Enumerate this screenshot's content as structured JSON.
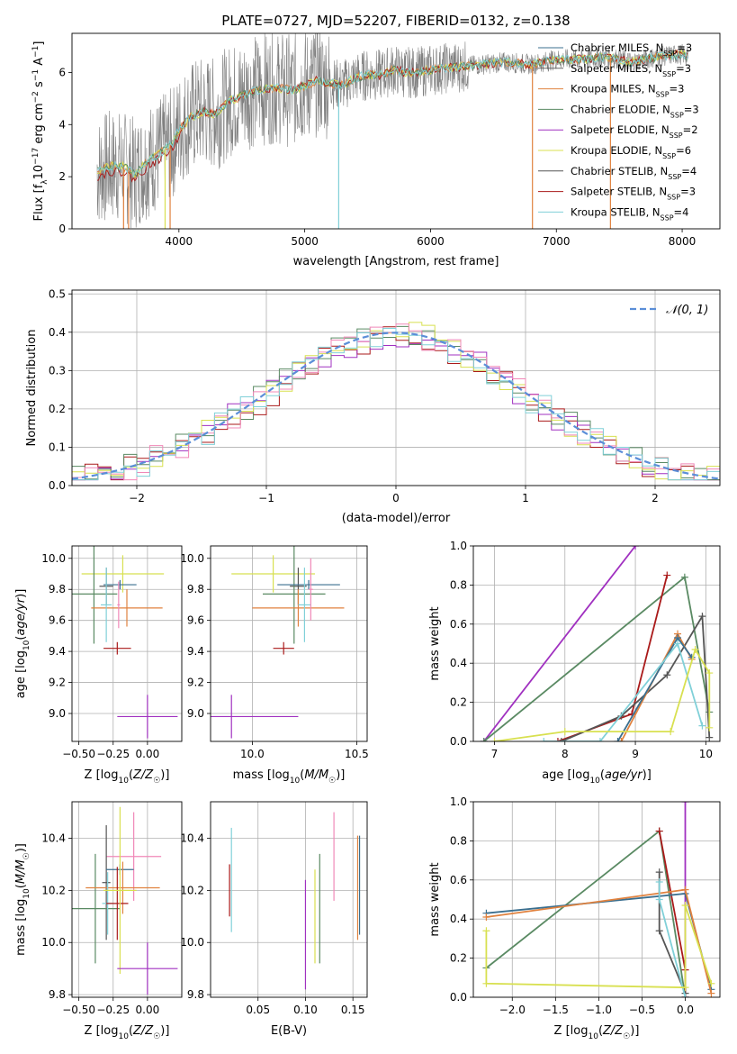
{
  "figure": {
    "title": "PLATE=0727, MJD=52207, FIBERID=0132, z=0.138"
  },
  "colors": {
    "Chabrier MILES": "#3b6f8f",
    "Salpeter MILES": "#666666",
    "Kroupa MILES": "#e0823f",
    "Chabrier ELODIE": "#5a8a63",
    "Salpeter ELODIE": "#a030c0",
    "Kroupa ELODIE": "#d8e050",
    "Chabrier STELIB": "#555555",
    "Salpeter STELIB": "#aa1a1a",
    "Kroupa STELIB": "#80d0d8",
    "spectrum": "#808080",
    "normal_curve": "#5b8ed8",
    "extra_pink": "#f088b8"
  },
  "chart_data": [
    {
      "id": "spectrum",
      "type": "line",
      "xlabel": "wavelength [Angstrom, rest frame]",
      "ylabel": "Flux [f_λ10^-17 erg cm^-2 s^-1 A^-1]",
      "ylabel_parts": {
        "main": "Flux [f",
        "sub1": "λ",
        "mid": "10",
        "sup1": "−17",
        "tail": " erg cm",
        "sup2": "−2",
        "tail2": " s",
        "sup3": "−1",
        "tail3": " A",
        "sup4": "−1",
        "end": "]"
      },
      "xlim": [
        3150,
        8300
      ],
      "ylim": [
        0,
        7.5
      ],
      "xticks": [
        4000,
        5000,
        6000,
        7000,
        8000
      ],
      "yticks": [
        0,
        2,
        4,
        6
      ],
      "grid": false,
      "legend_position": "right",
      "legend": [
        {
          "name": "Chabrier MILES",
          "label": "Chabrier MILES, N",
          "sub": "SSP",
          "tail": "=3"
        },
        {
          "name": "Salpeter MILES",
          "label": "Salpeter MILES, N",
          "sub": "SSP",
          "tail": "=3"
        },
        {
          "name": "Kroupa MILES",
          "label": "Kroupa MILES, N",
          "sub": "SSP",
          "tail": "=3"
        },
        {
          "name": "Chabrier ELODIE",
          "label": "Chabrier ELODIE, N",
          "sub": "SSP",
          "tail": "=3"
        },
        {
          "name": "Salpeter ELODIE",
          "label": "Salpeter ELODIE, N",
          "sub": "SSP",
          "tail": "=2"
        },
        {
          "name": "Kroupa ELODIE",
          "label": "Kroupa ELODIE, N",
          "sub": "SSP",
          "tail": "=6"
        },
        {
          "name": "Chabrier STELIB",
          "label": "Chabrier STELIB, N",
          "sub": "SSP",
          "tail": "=4"
        },
        {
          "name": "Salpeter STELIB",
          "label": "Salpeter STELIB, N",
          "sub": "SSP",
          "tail": "=3"
        },
        {
          "name": "Kroupa STELIB",
          "label": "Kroupa STELIB, N",
          "sub": "SSP",
          "tail": "=4"
        }
      ],
      "continuum": {
        "x": [
          3350,
          3450,
          3550,
          3650,
          3750,
          3850,
          3950,
          4000,
          4100,
          4200,
          4300,
          4400,
          4500,
          4600,
          4700,
          4800,
          4900,
          5000,
          5100,
          5200,
          5300,
          5400,
          5500,
          5600,
          5700,
          5800,
          5900,
          6000,
          6200,
          6400,
          6600,
          6800,
          7000,
          7200,
          7400,
          7600,
          7800,
          8000,
          8050
        ],
        "y": [
          2.2,
          2.4,
          2.4,
          2.1,
          2.6,
          2.9,
          3.3,
          3.8,
          4.3,
          4.5,
          4.4,
          4.9,
          5.1,
          5.3,
          5.4,
          5.4,
          5.3,
          5.5,
          5.7,
          5.6,
          5.5,
          5.8,
          5.9,
          5.9,
          6.1,
          6.0,
          6.0,
          6.1,
          6.2,
          6.3,
          6.4,
          6.3,
          6.5,
          6.5,
          6.6,
          6.4,
          6.6,
          6.7,
          6.6
        ]
      },
      "dips": [
        {
          "x": 3560,
          "series": "Kroupa MILES"
        },
        {
          "x": 3600,
          "series": "Kroupa MILES"
        },
        {
          "x": 3890,
          "series": "Kroupa ELODIE"
        },
        {
          "x": 3930,
          "series": "Kroupa MILES"
        },
        {
          "x": 5270,
          "series": "Kroupa STELIB"
        },
        {
          "x": 6810,
          "series": "Kroupa MILES"
        },
        {
          "x": 7430,
          "series": "Kroupa MILES"
        }
      ]
    },
    {
      "id": "residuals",
      "type": "histogram",
      "xlabel": "(data-model)/error",
      "ylabel": "Normed distribution",
      "xlim": [
        -2.5,
        2.5
      ],
      "ylim": [
        0,
        0.51
      ],
      "xticks": [
        -2,
        -1,
        0,
        1,
        2
      ],
      "yticks": [
        0.0,
        0.1,
        0.2,
        0.3,
        0.4,
        0.5
      ],
      "grid": true,
      "legend_position": "top-right",
      "legend_label": "𝒩(0, 1)",
      "bin_width": 0.1,
      "series": [
        {
          "name": "Salpeter STELIB",
          "amp": 0.38,
          "seed": 1
        },
        {
          "name": "Salpeter ELODIE",
          "amp": 0.39,
          "seed": 2
        },
        {
          "name": "Chabrier ELODIE",
          "amp": 0.4,
          "seed": 3
        },
        {
          "name": "Kroupa ELODIE",
          "amp": 0.4,
          "seed": 4
        },
        {
          "name": "extra_pink",
          "amp": 0.39,
          "seed": 5
        },
        {
          "name": "Kroupa STELIB",
          "amp": 0.39,
          "seed": 6
        }
      ]
    },
    {
      "id": "age-vs-Z",
      "type": "errorbar",
      "xlabel": "Z [log10(Z/Z☉)]",
      "ylabel": "age  [log10(age/yr)]",
      "xlim": [
        -0.55,
        0.25
      ],
      "ylim": [
        8.82,
        10.08
      ],
      "xticks": [
        -0.5,
        -0.25,
        0.0
      ],
      "yticks": [
        9.0,
        9.2,
        9.4,
        9.6,
        9.8,
        10.0
      ],
      "grid": true,
      "points": [
        {
          "series": "Kroupa ELODIE",
          "x": -0.18,
          "xerr": 0.3,
          "y": 9.9,
          "yerr": 0.12
        },
        {
          "series": "Chabrier STELIB",
          "x": -0.3,
          "xerr": 0.05,
          "y": 9.82,
          "yerr": 0.12
        },
        {
          "series": "Chabrier ELODIE",
          "x": -0.39,
          "xerr": 0.17,
          "y": 9.77,
          "yerr": 0.32
        },
        {
          "series": "Chabrier MILES",
          "x": -0.2,
          "xerr": 0.12,
          "y": 9.83,
          "yerr": 0.03
        },
        {
          "series": "Kroupa MILES",
          "x": -0.15,
          "xerr": 0.26,
          "y": 9.68,
          "yerr": 0.12
        },
        {
          "series": "Kroupa STELIB",
          "x": -0.3,
          "xerr": 0.04,
          "y": 9.7,
          "yerr": 0.24
        },
        {
          "series": "Salpeter STELIB",
          "x": -0.22,
          "xerr": 0.1,
          "y": 9.42,
          "yerr": 0.04
        },
        {
          "series": "Salpeter ELODIE",
          "x": 0.0,
          "xerr": 0.22,
          "y": 8.98,
          "yerr": 0.14
        },
        {
          "series": "extra_pink",
          "x": -0.21,
          "xerr": 0.01,
          "y": 9.7,
          "yerr": 0.15
        }
      ]
    },
    {
      "id": "age-vs-mass",
      "type": "errorbar",
      "xlabel": "mass [log10(M/M☉)]",
      "ylabel": "",
      "xlim": [
        9.8,
        10.55
      ],
      "ylim": [
        8.82,
        10.08
      ],
      "xticks": [
        10.0,
        10.5
      ],
      "yticks": [
        9.0,
        9.2,
        9.4,
        9.6,
        9.8,
        10.0
      ],
      "grid": true,
      "points": [
        {
          "series": "Kroupa ELODIE",
          "x": 10.1,
          "xerr": 0.2,
          "y": 9.9,
          "yerr": 0.12
        },
        {
          "series": "Chabrier STELIB",
          "x": 10.22,
          "xerr": 0.04,
          "y": 9.82,
          "yerr": 0.12
        },
        {
          "series": "Chabrier ELODIE",
          "x": 10.2,
          "xerr": 0.15,
          "y": 9.77,
          "yerr": 0.32
        },
        {
          "series": "Chabrier MILES",
          "x": 10.27,
          "xerr": 0.15,
          "y": 9.83,
          "yerr": 0.03
        },
        {
          "series": "Kroupa MILES",
          "x": 10.22,
          "xerr": 0.22,
          "y": 9.68,
          "yerr": 0.12
        },
        {
          "series": "Kroupa STELIB",
          "x": 10.25,
          "xerr": 0.03,
          "y": 9.7,
          "yerr": 0.24
        },
        {
          "series": "Salpeter STELIB",
          "x": 10.15,
          "xerr": 0.05,
          "y": 9.42,
          "yerr": 0.04
        },
        {
          "series": "Salpeter ELODIE",
          "x": 9.9,
          "xerr": 0.32,
          "y": 8.98,
          "yerr": 0.14
        },
        {
          "series": "extra_pink",
          "x": 10.28,
          "xerr": 0.01,
          "y": 9.8,
          "yerr": 0.2
        }
      ]
    },
    {
      "id": "mass-weight-vs-age",
      "type": "line",
      "xlabel": "age  [log10(age/yr)]",
      "ylabel": "mass weight",
      "xlim": [
        6.7,
        10.2
      ],
      "ylim": [
        0,
        1
      ],
      "xticks": [
        7,
        8,
        9,
        10
      ],
      "yticks": [
        0.0,
        0.2,
        0.4,
        0.6,
        0.8,
        1.0
      ],
      "grid": true,
      "series": [
        {
          "name": "Salpeter ELODIE",
          "x": [
            6.85,
            9.0
          ],
          "y": [
            0.0,
            1.0
          ]
        },
        {
          "name": "Chabrier ELODIE",
          "x": [
            6.85,
            9.7,
            10.05
          ],
          "y": [
            0.0,
            0.84,
            0.15
          ]
        },
        {
          "name": "Salpeter STELIB",
          "x": [
            7.9,
            8.95,
            9.45
          ],
          "y": [
            0.0,
            0.14,
            0.85
          ]
        },
        {
          "name": "Chabrier STELIB",
          "x": [
            7.95,
            8.8,
            9.45,
            9.95,
            10.05
          ],
          "y": [
            0.0,
            0.13,
            0.34,
            0.64,
            0.02
          ]
        },
        {
          "name": "Kroupa MILES",
          "x": [
            8.8,
            9.6,
            9.8
          ],
          "y": [
            0.0,
            0.55,
            0.42
          ]
        },
        {
          "name": "Chabrier MILES",
          "x": [
            8.75,
            9.6,
            9.8
          ],
          "y": [
            0.0,
            0.53,
            0.43
          ]
        },
        {
          "name": "Kroupa STELIB",
          "x": [
            7.7,
            8.5,
            9.6,
            9.95
          ],
          "y": [
            0.0,
            0.0,
            0.5,
            0.08
          ]
        },
        {
          "name": "Kroupa ELODIE",
          "x": [
            7.0,
            8.0,
            9.5,
            9.85,
            10.05,
            10.05
          ],
          "y": [
            0.0,
            0.05,
            0.05,
            0.47,
            0.35,
            0.07
          ]
        }
      ]
    },
    {
      "id": "mass-vs-Z",
      "type": "errorbar",
      "xlabel": "Z [log10(Z/Z☉)]",
      "ylabel": "mass [log10(M/M☉)]",
      "xlim": [
        -0.55,
        0.25
      ],
      "ylim": [
        9.79,
        10.54
      ],
      "xticks": [
        -0.5,
        -0.25,
        0.0
      ],
      "yticks": [
        9.8,
        10.0,
        10.2,
        10.4
      ],
      "grid": true,
      "points": [
        {
          "series": "extra_pink",
          "x": -0.1,
          "xerr": 0.2,
          "y": 10.33,
          "yerr": 0.17
        },
        {
          "series": "Chabrier STELIB",
          "x": -0.3,
          "xerr": 0.03,
          "y": 10.23,
          "yerr": 0.22
        },
        {
          "series": "Chabrier ELODIE",
          "x": -0.38,
          "xerr": 0.18,
          "y": 10.13,
          "yerr": 0.21
        },
        {
          "series": "Chabrier MILES",
          "x": -0.2,
          "xerr": 0.1,
          "y": 10.28,
          "yerr": 0.02
        },
        {
          "series": "Kroupa MILES",
          "x": -0.18,
          "xerr": 0.27,
          "y": 10.21,
          "yerr": 0.1
        },
        {
          "series": "Kroupa STELIB",
          "x": -0.29,
          "xerr": 0.04,
          "y": 10.15,
          "yerr": 0.12
        },
        {
          "series": "Salpeter STELIB",
          "x": -0.22,
          "xerr": 0.08,
          "y": 10.15,
          "yerr": 0.14
        },
        {
          "series": "Kroupa ELODIE",
          "x": -0.2,
          "xerr": 0.12,
          "y": 10.2,
          "yerr": 0.32
        },
        {
          "series": "Salpeter ELODIE",
          "x": 0.0,
          "xerr": 0.22,
          "y": 9.9,
          "yerr": 0.1
        }
      ]
    },
    {
      "id": "mass-vs-EBV",
      "type": "errorbar",
      "xlabel": "E(B-V)",
      "ylabel": "",
      "xlim": [
        0.0,
        0.165
      ],
      "ylim": [
        9.79,
        10.54
      ],
      "xticks": [
        0.05,
        0.1,
        0.15
      ],
      "yticks": [
        9.8,
        10.0,
        10.2,
        10.4
      ],
      "grid": true,
      "points": [
        {
          "series": "Salpeter STELIB",
          "x": 0.02,
          "xerr": 0.0,
          "y": 10.2,
          "yerr": 0.1
        },
        {
          "series": "Kroupa STELIB",
          "x": 0.022,
          "xerr": 0.0,
          "y": 10.24,
          "yerr": 0.2
        },
        {
          "series": "Salpeter ELODIE",
          "x": 0.1,
          "xerr": 0.0,
          "y": 10.03,
          "yerr": 0.21
        },
        {
          "series": "Chabrier ELODIE",
          "x": 0.115,
          "xerr": 0.0,
          "y": 10.13,
          "yerr": 0.21
        },
        {
          "series": "Kroupa ELODIE",
          "x": 0.11,
          "xerr": 0.0,
          "y": 10.1,
          "yerr": 0.18
        },
        {
          "series": "extra_pink",
          "x": 0.13,
          "xerr": 0.0,
          "y": 10.33,
          "yerr": 0.17
        },
        {
          "series": "Kroupa MILES",
          "x": 0.155,
          "xerr": 0.0,
          "y": 10.21,
          "yerr": 0.2
        },
        {
          "series": "Chabrier MILES",
          "x": 0.157,
          "xerr": 0.0,
          "y": 10.22,
          "yerr": 0.19
        }
      ]
    },
    {
      "id": "mass-weight-vs-Z",
      "type": "line",
      "xlabel": "Z [log10(Z/Z☉)]",
      "ylabel": "mass weight",
      "xlim": [
        -2.45,
        0.4
      ],
      "ylim": [
        0,
        1
      ],
      "xticks": [
        -2.0,
        -1.5,
        -1.0,
        -0.5,
        0.0
      ],
      "yticks": [
        0.0,
        0.2,
        0.4,
        0.6,
        0.8,
        1.0
      ],
      "grid": true,
      "series": [
        {
          "name": "Chabrier ELODIE",
          "x": [
            -2.3,
            -0.3,
            0.0
          ],
          "y": [
            0.15,
            0.85,
            0.0
          ]
        },
        {
          "name": "Salpeter ELODIE",
          "x": [
            0.0,
            0.0
          ],
          "y": [
            1.0,
            0.0
          ]
        },
        {
          "name": "Salpeter STELIB",
          "x": [
            -0.3,
            0.0,
            0.0
          ],
          "y": [
            0.85,
            0.14,
            0.0
          ]
        },
        {
          "name": "Chabrier STELIB",
          "x": [
            -0.3,
            -0.3,
            0.0
          ],
          "y": [
            0.64,
            0.34,
            0.02
          ]
        },
        {
          "name": "Chabrier MILES",
          "x": [
            -2.3,
            0.0,
            0.3
          ],
          "y": [
            0.43,
            0.53,
            0.04
          ]
        },
        {
          "name": "Kroupa MILES",
          "x": [
            -2.3,
            0.0,
            0.3
          ],
          "y": [
            0.41,
            0.55,
            0.02
          ]
        },
        {
          "name": "Kroupa STELIB",
          "x": [
            -0.3,
            -0.3,
            0.0
          ],
          "y": [
            0.59,
            0.5,
            0.0
          ]
        },
        {
          "name": "Kroupa ELODIE",
          "x": [
            -2.3,
            -2.3,
            0.0,
            0.0,
            0.3
          ],
          "y": [
            0.34,
            0.07,
            0.05,
            0.47,
            0.07
          ]
        }
      ]
    }
  ]
}
